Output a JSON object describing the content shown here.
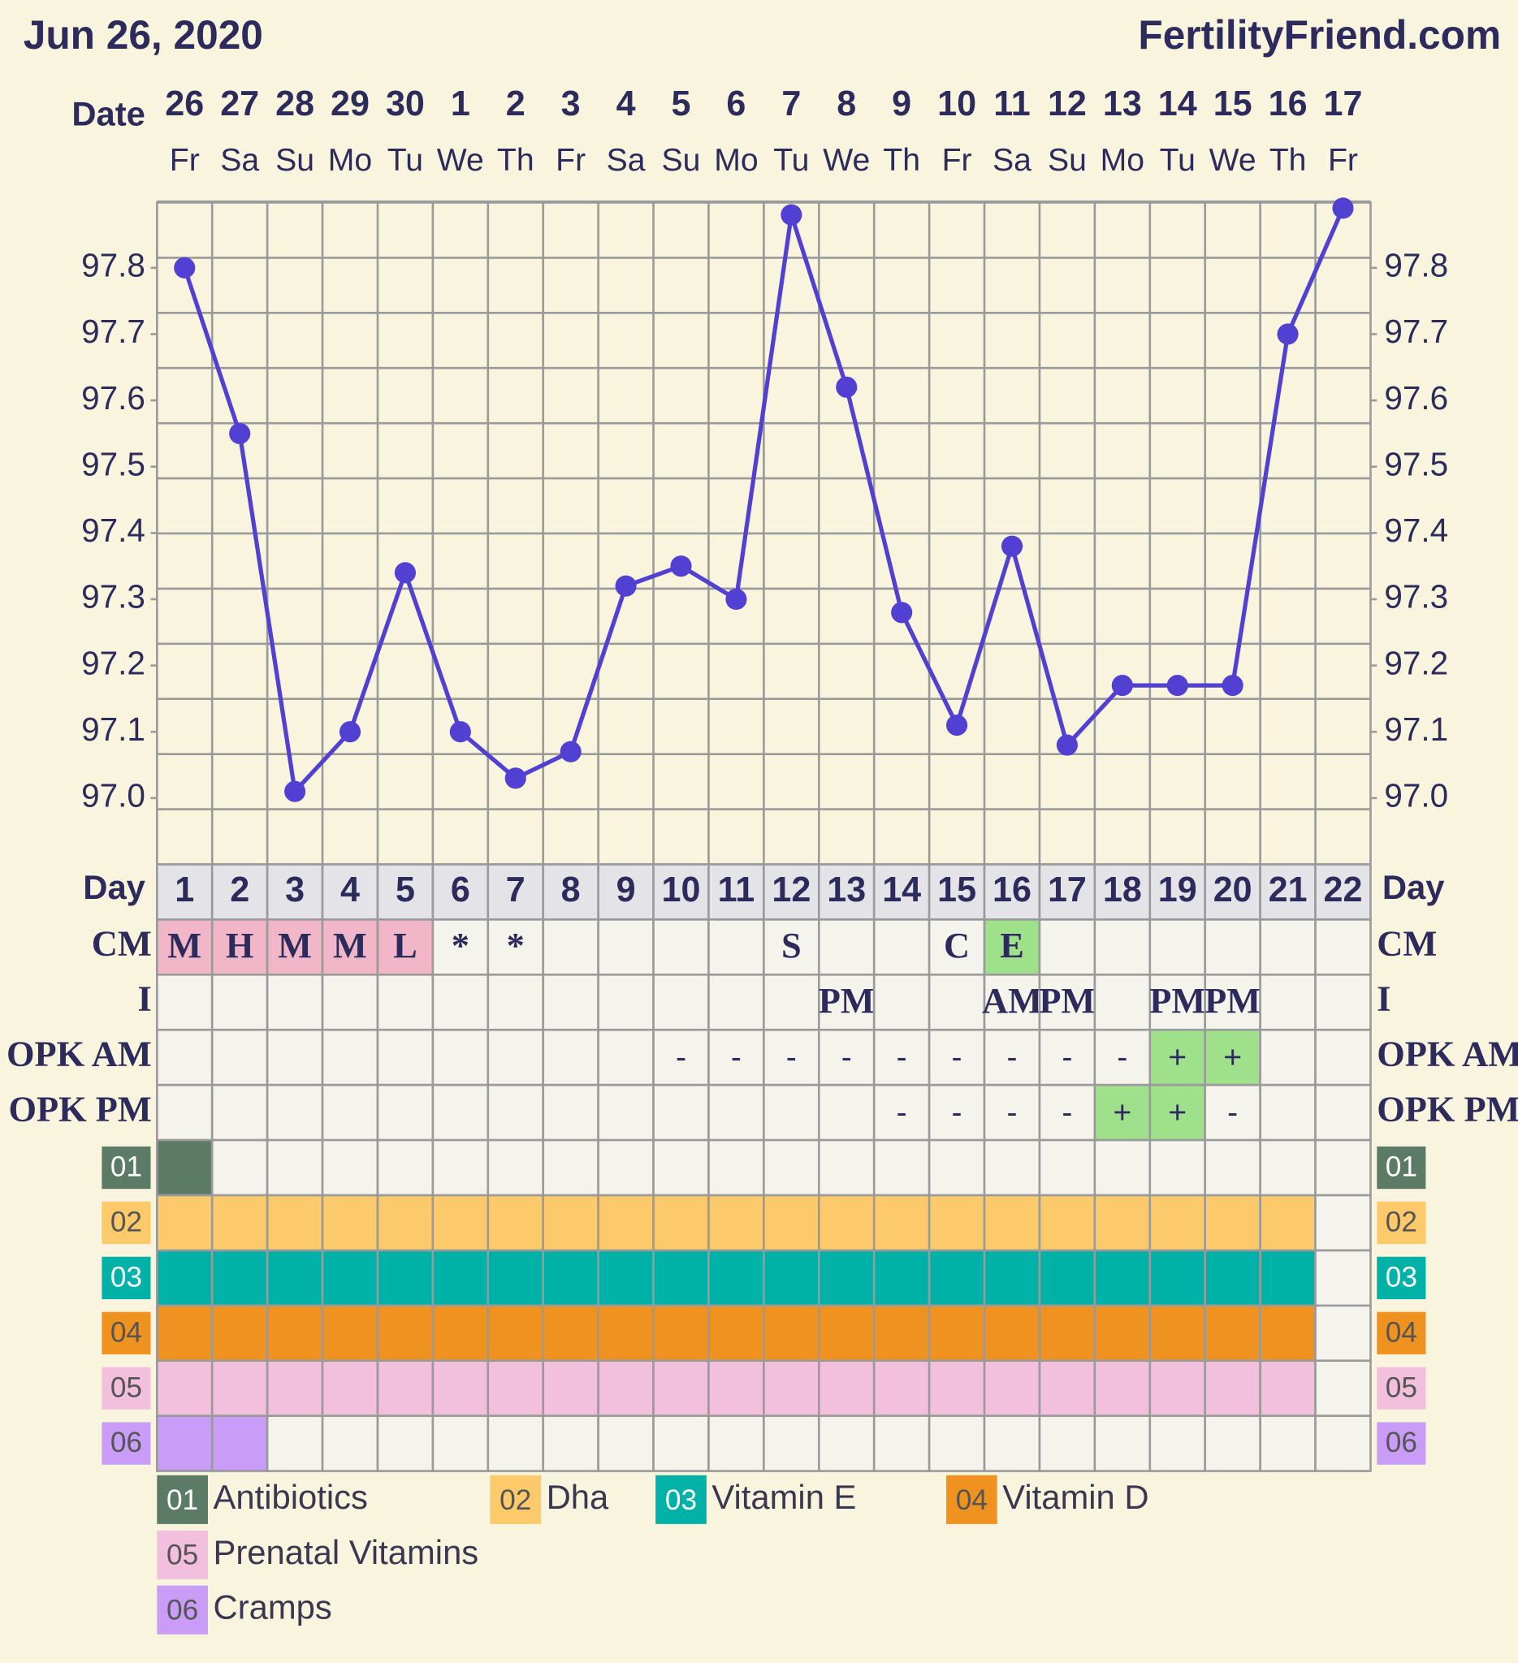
{
  "chart_data": {
    "type": "line",
    "title": "Jun 26, 2020",
    "source": "FertilityFriend.com",
    "x_label": "Date",
    "categories": [
      "26",
      "27",
      "28",
      "29",
      "30",
      "1",
      "2",
      "3",
      "4",
      "5",
      "6",
      "7",
      "8",
      "9",
      "10",
      "11",
      "12",
      "13",
      "14",
      "15",
      "16",
      "17"
    ],
    "weekdays": [
      "Fr",
      "Sa",
      "Su",
      "Mo",
      "Tu",
      "We",
      "Th",
      "Fr",
      "Sa",
      "Su",
      "Mo",
      "Tu",
      "We",
      "Th",
      "Fr",
      "Sa",
      "Su",
      "Mo",
      "Tu",
      "We",
      "Th",
      "Fr"
    ],
    "series": [
      {
        "color": "#5140d2",
        "values": [
          97.8,
          97.55,
          97.01,
          97.1,
          97.34,
          97.1,
          97.03,
          97.07,
          97.32,
          97.35,
          97.3,
          97.88,
          97.62,
          97.28,
          97.11,
          97.38,
          97.08,
          97.17,
          97.17,
          97.17,
          97.7,
          97.89
        ]
      }
    ],
    "ylim": [
      96.9,
      97.9
    ],
    "yticks": [
      {
        "value": 97,
        "label": "97.0"
      },
      97.1,
      97.2,
      97.3,
      97.4,
      97.5,
      97.6,
      97.7,
      97.8
    ],
    "grid": true,
    "day_label": "Day",
    "days": [
      1,
      2,
      3,
      4,
      5,
      6,
      7,
      8,
      9,
      10,
      11,
      12,
      13,
      14,
      15,
      16,
      17,
      18,
      19,
      20,
      21,
      22
    ],
    "rows": [
      {
        "label": "CM",
        "style": "serif",
        "cells": [
          {
            "text": "M",
            "color": "#f2b6c9"
          },
          {
            "text": "H",
            "color": "#f2b6c9"
          },
          {
            "text": "M",
            "color": "#f2b6c9"
          },
          {
            "text": "M",
            "color": "#f2b6c9"
          },
          {
            "text": "L",
            "color": "#f2b6c9"
          },
          "*",
          "*",
          null,
          null,
          null,
          null,
          "S",
          null,
          null,
          "C",
          {
            "text": "E",
            "color": "#9fe08a"
          },
          null,
          null,
          null,
          null,
          null,
          null
        ]
      },
      {
        "label": "I",
        "style": "serif",
        "cells": [
          null,
          null,
          null,
          null,
          null,
          null,
          null,
          null,
          null,
          null,
          null,
          null,
          "PM",
          null,
          null,
          "AM",
          "PM",
          null,
          "PM",
          "PM",
          null,
          null
        ]
      },
      {
        "label": "OPK AM",
        "style": "sans",
        "cells": [
          null,
          null,
          null,
          null,
          null,
          null,
          null,
          null,
          null,
          "-",
          "-",
          "-",
          "-",
          "-",
          "-",
          "-",
          "-",
          "-",
          {
            "text": "+",
            "color": "#9fe08a"
          },
          {
            "text": "+",
            "color": "#9fe08a"
          },
          null,
          null
        ]
      },
      {
        "label": "OPK PM",
        "style": "sans",
        "cells": [
          null,
          null,
          null,
          null,
          null,
          null,
          null,
          null,
          null,
          null,
          null,
          null,
          null,
          "-",
          "-",
          "-",
          "-",
          {
            "text": "+",
            "color": "#9fe08a"
          },
          {
            "text": "+",
            "color": "#9fe08a"
          },
          "-",
          null,
          null
        ]
      }
    ],
    "supplements": [
      {
        "code": "01",
        "name": "Antibiotics",
        "color": "#5b7b66",
        "taken": [
          true,
          false,
          false,
          false,
          false,
          false,
          false,
          false,
          false,
          false,
          false,
          false,
          false,
          false,
          false,
          false,
          false,
          false,
          false,
          false,
          false,
          false
        ]
      },
      {
        "code": "02",
        "name": "Dha",
        "color": "#fdca6b",
        "taken": [
          true,
          true,
          true,
          true,
          true,
          true,
          true,
          true,
          true,
          true,
          true,
          true,
          true,
          true,
          true,
          true,
          true,
          true,
          true,
          true,
          true,
          false
        ]
      },
      {
        "code": "03",
        "name": "Vitamin E",
        "color": "#00b1a8",
        "taken": [
          true,
          true,
          true,
          true,
          true,
          true,
          true,
          true,
          true,
          true,
          true,
          true,
          true,
          true,
          true,
          true,
          true,
          true,
          true,
          true,
          true,
          false
        ]
      },
      {
        "code": "04",
        "name": "Vitamin D",
        "color": "#f0921f",
        "taken": [
          true,
          true,
          true,
          true,
          true,
          true,
          true,
          true,
          true,
          true,
          true,
          true,
          true,
          true,
          true,
          true,
          true,
          true,
          true,
          true,
          true,
          false
        ]
      },
      {
        "code": "05",
        "name": "Prenatal Vitamins",
        "color": "#f2c0dc",
        "taken": [
          true,
          true,
          true,
          true,
          true,
          true,
          true,
          true,
          true,
          true,
          true,
          true,
          true,
          true,
          true,
          true,
          true,
          true,
          true,
          true,
          true,
          false
        ]
      },
      {
        "code": "06",
        "name": "Cramps",
        "color": "#c99df7",
        "taken": [
          true,
          true,
          false,
          false,
          false,
          false,
          false,
          false,
          false,
          false,
          false,
          false,
          false,
          false,
          false,
          false,
          false,
          false,
          false,
          false,
          false,
          false
        ]
      }
    ]
  }
}
